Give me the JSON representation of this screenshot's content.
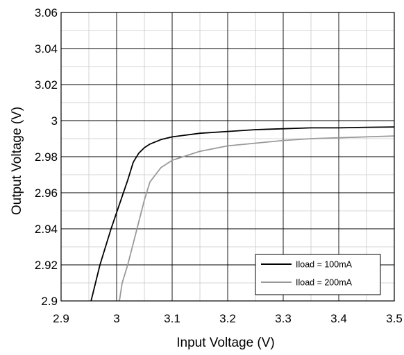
{
  "caption": "",
  "chart_data": {
    "type": "line",
    "title": "",
    "xlabel": "Input Voltage (V)",
    "ylabel": "Output Voltage (V)",
    "xlim": [
      2.9,
      3.5
    ],
    "ylim": [
      2.9,
      3.06
    ],
    "xticks": [
      "2.9",
      "3",
      "3.1",
      "3.2",
      "3.3",
      "3.4",
      "3.5"
    ],
    "yticks": [
      "2.9",
      "2.92",
      "2.94",
      "2.96",
      "2.98",
      "3",
      "3.02",
      "3.04",
      "3.06"
    ],
    "grid": true,
    "legend_position": "bottom-right",
    "series": [
      {
        "name": "Iload = 100mA",
        "color": "#000000",
        "points": [
          [
            2.954,
            2.9
          ],
          [
            2.962,
            2.91
          ],
          [
            2.97,
            2.92
          ],
          [
            2.98,
            2.93
          ],
          [
            2.99,
            2.94
          ],
          [
            3.0,
            2.949
          ],
          [
            3.01,
            2.958
          ],
          [
            3.02,
            2.967
          ],
          [
            3.03,
            2.977
          ],
          [
            3.04,
            2.982
          ],
          [
            3.05,
            2.985
          ],
          [
            3.06,
            2.987
          ],
          [
            3.08,
            2.9895
          ],
          [
            3.1,
            2.991
          ],
          [
            3.15,
            2.993
          ],
          [
            3.2,
            2.994
          ],
          [
            3.25,
            2.995
          ],
          [
            3.3,
            2.9955
          ],
          [
            3.35,
            2.996
          ],
          [
            3.4,
            2.996
          ],
          [
            3.45,
            2.9963
          ],
          [
            3.5,
            2.9965
          ]
        ]
      },
      {
        "name": "Iload = 200mA",
        "color": "#999999",
        "points": [
          [
            3.005,
            2.9
          ],
          [
            3.01,
            2.91
          ],
          [
            3.02,
            2.92
          ],
          [
            3.03,
            2.932
          ],
          [
            3.04,
            2.944
          ],
          [
            3.05,
            2.956
          ],
          [
            3.06,
            2.966
          ],
          [
            3.07,
            2.97
          ],
          [
            3.08,
            2.974
          ],
          [
            3.1,
            2.978
          ],
          [
            3.15,
            2.983
          ],
          [
            3.2,
            2.986
          ],
          [
            3.25,
            2.9875
          ],
          [
            3.3,
            2.989
          ],
          [
            3.35,
            2.99
          ],
          [
            3.4,
            2.9905
          ],
          [
            3.45,
            2.991
          ],
          [
            3.5,
            2.9915
          ]
        ]
      }
    ]
  }
}
